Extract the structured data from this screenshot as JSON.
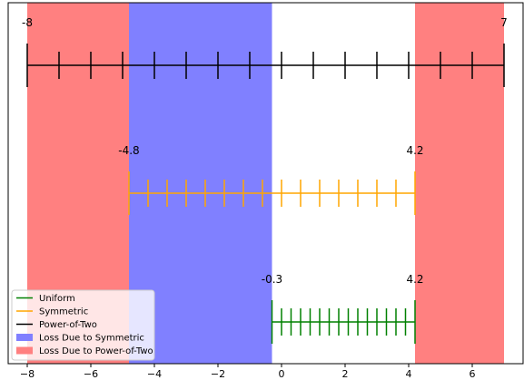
{
  "chart_data": {
    "type": "number-line",
    "title": "",
    "xlabel": "",
    "ylabel": "",
    "xlim": [
      -8.6,
      7.6
    ],
    "x_ticks": [
      -8,
      -6,
      -4,
      -2,
      0,
      2,
      4,
      6
    ],
    "x_tick_labels": [
      "−8",
      "−6",
      "−4",
      "−2",
      "0",
      "2",
      "4",
      "6"
    ],
    "grid": false,
    "legend_position": "lower-left",
    "regions": [
      {
        "name": "Loss Due to Power-of-Two",
        "color": "#ff8080",
        "from": -8,
        "to": -4.8
      },
      {
        "name": "Loss Due to Symmetric",
        "color": "#8080ff",
        "from": -4.8,
        "to": -0.3
      },
      {
        "name": "Loss Due to Power-of-Two",
        "color": "#ff8080",
        "from": 4.2,
        "to": 7
      }
    ],
    "series": [
      {
        "name": "Power-of-Two",
        "color": "#000000",
        "level": 3,
        "min": -8,
        "max": 7,
        "min_label": "-8",
        "max_label": "7",
        "ticks": [
          -8,
          -7,
          -6,
          -5,
          -4,
          -3,
          -2,
          -1,
          0,
          1,
          2,
          3,
          4,
          5,
          6,
          7
        ]
      },
      {
        "name": "Symmetric",
        "color": "#ffa500",
        "level": 2,
        "min": -4.8,
        "max": 4.2,
        "min_label": "-4.8",
        "max_label": "4.2",
        "ticks": [
          -4.8,
          -4.2,
          -3.6,
          -3.0,
          -2.4,
          -1.8,
          -1.2,
          -0.6,
          0.0,
          0.6,
          1.2,
          1.8,
          2.4,
          3.0,
          3.6,
          4.2
        ]
      },
      {
        "name": "Uniform",
        "color": "#008000",
        "level": 1,
        "min": -0.3,
        "max": 4.2,
        "min_label": "-0.3",
        "max_label": "4.2",
        "ticks": [
          -0.3,
          0.0,
          0.3,
          0.6,
          0.9,
          1.2,
          1.5,
          1.8,
          2.1,
          2.4,
          2.7,
          3.0,
          3.3,
          3.6,
          3.9,
          4.2
        ]
      }
    ],
    "legend": [
      {
        "label": "Uniform",
        "kind": "line",
        "color": "#008000"
      },
      {
        "label": "Symmetric",
        "kind": "line",
        "color": "#ffa500"
      },
      {
        "label": "Power-of-Two",
        "kind": "line",
        "color": "#000000"
      },
      {
        "label": "Loss Due to Symmetric",
        "kind": "patch",
        "color": "#8080ff"
      },
      {
        "label": "Loss Due to Power-of-Two",
        "kind": "patch",
        "color": "#ff8080"
      }
    ]
  }
}
